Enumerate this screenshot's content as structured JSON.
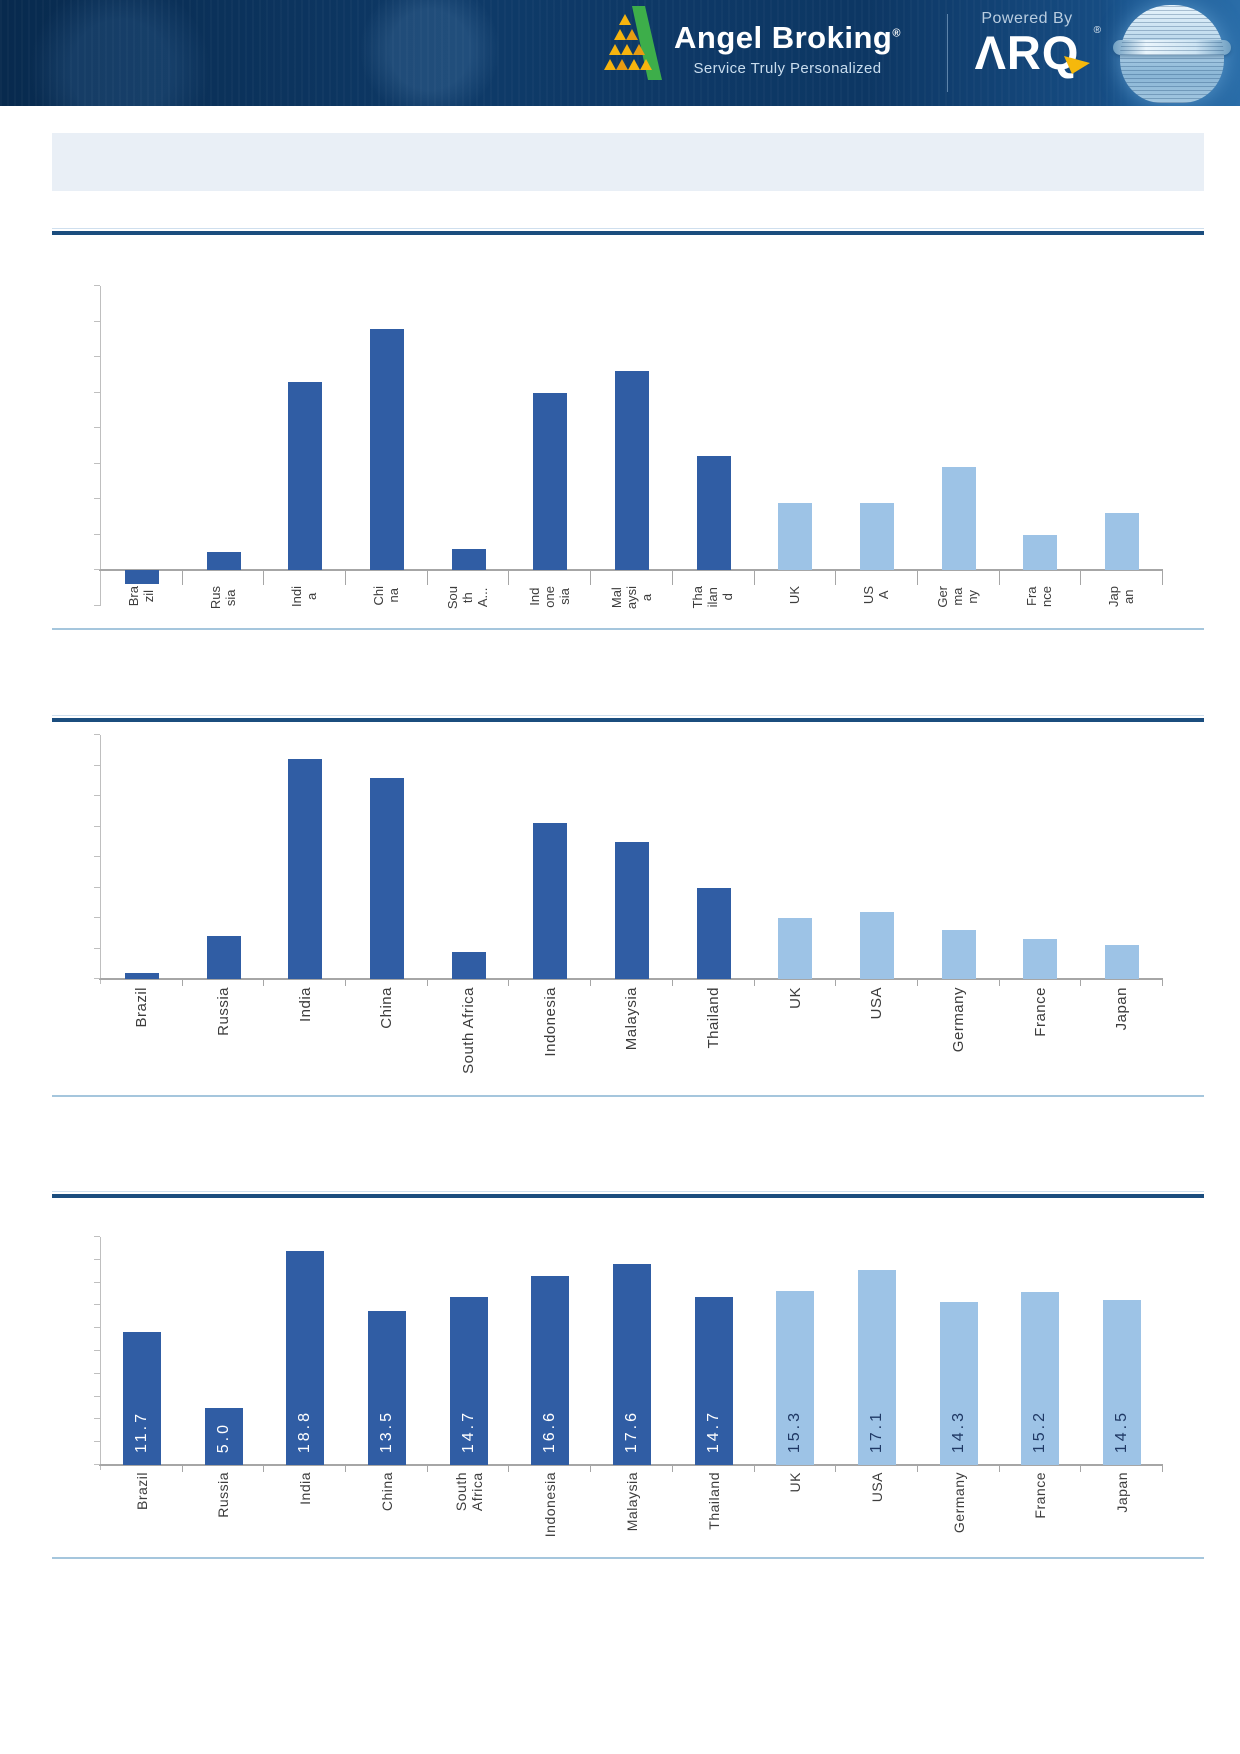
{
  "header": {
    "brand": "Angel Broking",
    "brand_mark": "®",
    "tagline": "Service Truly Personalized",
    "powered_by": "Powered By",
    "product_styled": "ΛRQ",
    "product_mark": "®"
  },
  "title_box": {
    "text": ""
  },
  "colors": {
    "bar_dark": "#305da4",
    "bar_light": "#9dc3e6",
    "value_on_dark": "#ffffff",
    "value_on_light": "#1f3864",
    "banner_bg": "#0e3a68",
    "rule_dark": "#1b4d7e",
    "divider_light": "#a5c6dd",
    "logo_green": "#3dae4a",
    "logo_yellow": "#f6b40e",
    "arq_arrow_yellow": "#f5b80c"
  },
  "chart_data": [
    {
      "type": "bar",
      "title": "",
      "xlabel": "",
      "ylabel": "",
      "categories": [
        "Brazil",
        "Russia",
        "India",
        "China",
        "South Africa",
        "Indonesia",
        "Malaysia",
        "Thailand",
        "UK",
        "USA",
        "Germany",
        "France",
        "Japan"
      ],
      "values": [
        -0.4,
        0.5,
        5.3,
        6.8,
        0.6,
        5.0,
        5.6,
        3.2,
        1.9,
        1.9,
        2.9,
        1.0,
        1.6
      ],
      "ylim": [
        -1,
        8
      ],
      "tick_step": 1,
      "grid": false,
      "legend": false,
      "axis_value_labels_shown": false,
      "dark_count": 8,
      "show_values": false,
      "x_tick_display": [
        [
          "Bra",
          "zil"
        ],
        [
          "Rus",
          "sia"
        ],
        [
          "Indi",
          "a"
        ],
        [
          "Chi",
          "na"
        ],
        [
          "Sou",
          "th",
          "A..."
        ],
        [
          "Ind",
          "one",
          "sia"
        ],
        [
          "Mal",
          "aysi",
          "a"
        ],
        [
          "Tha",
          "ilan",
          "d"
        ],
        [
          "UK"
        ],
        [
          "US",
          "A"
        ],
        [
          "Ger",
          "ma",
          "ny"
        ],
        [
          "Fra",
          "nce"
        ],
        [
          "Jap",
          "an"
        ]
      ]
    },
    {
      "type": "bar",
      "title": "",
      "xlabel": "",
      "ylabel": "",
      "categories": [
        "Brazil",
        "Russia",
        "India",
        "China",
        "South Africa",
        "Indonesia",
        "Malaysia",
        "Thailand",
        "UK",
        "USA",
        "Germany",
        "France",
        "Japan"
      ],
      "values": [
        0.2,
        1.4,
        7.2,
        6.6,
        0.9,
        5.1,
        4.5,
        3.0,
        2.0,
        2.2,
        1.6,
        1.3,
        1.1
      ],
      "ylim": [
        0,
        8
      ],
      "tick_step": 1,
      "grid": false,
      "legend": false,
      "axis_value_labels_shown": false,
      "dark_count": 8,
      "show_values": false,
      "x_tick_display": [
        [
          "Brazil"
        ],
        [
          "Russia"
        ],
        [
          "India"
        ],
        [
          "China"
        ],
        [
          "South Africa"
        ],
        [
          "Indonesia"
        ],
        [
          "Malaysia"
        ],
        [
          "Thailand"
        ],
        [
          "UK"
        ],
        [
          "USA"
        ],
        [
          "Germany"
        ],
        [
          "France"
        ],
        [
          "Japan"
        ]
      ]
    },
    {
      "type": "bar",
      "title": "",
      "xlabel": "",
      "ylabel": "",
      "categories": [
        "Brazil",
        "Russia",
        "India",
        "China",
        "South Africa",
        "Indonesia",
        "Malaysia",
        "Thailand",
        "UK",
        "USA",
        "Germany",
        "France",
        "Japan"
      ],
      "values": [
        11.7,
        5.0,
        18.8,
        13.5,
        14.7,
        16.6,
        17.6,
        14.7,
        15.3,
        17.1,
        14.3,
        15.2,
        14.5
      ],
      "value_labels": [
        "11.7",
        "5.0",
        "18.8",
        "13.5",
        "14.7",
        "16.6",
        "17.6",
        "14.7",
        "15.3",
        "17.1",
        "14.3",
        "15.2",
        "14.5"
      ],
      "ylim": [
        0,
        20
      ],
      "tick_step": 2,
      "grid": false,
      "legend": false,
      "axis_value_labels_shown": false,
      "dark_count": 8,
      "show_values": true,
      "x_tick_display": [
        [
          "Brazil"
        ],
        [
          "Russia"
        ],
        [
          "India"
        ],
        [
          "China"
        ],
        [
          "South",
          "Africa"
        ],
        [
          "Indonesia"
        ],
        [
          "Malaysia"
        ],
        [
          "Thailand"
        ],
        [
          "UK"
        ],
        [
          "USA"
        ],
        [
          "Germany"
        ],
        [
          "France"
        ],
        [
          "Japan"
        ]
      ]
    }
  ]
}
